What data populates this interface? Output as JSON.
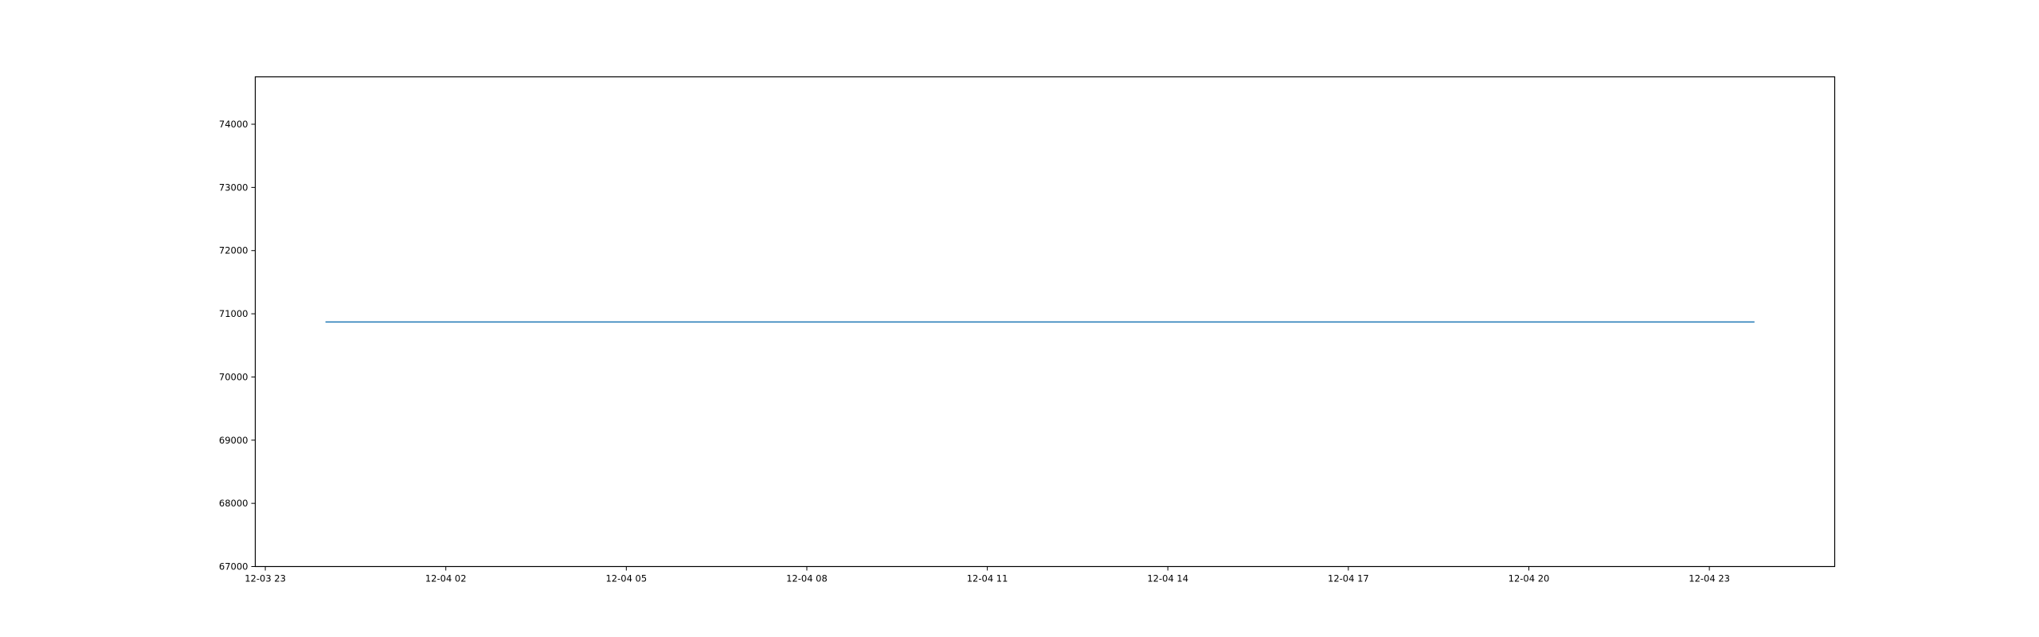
{
  "chart_data": {
    "type": "line",
    "title": "",
    "xlabel": "",
    "ylabel": "",
    "x_ticks": [
      "12-03 23",
      "12-04 02",
      "12-04 05",
      "12-04 08",
      "12-04 11",
      "12-04 14",
      "12-04 17",
      "12-04 20",
      "12-04 23"
    ],
    "y_ticks": [
      "67000",
      "68000",
      "69000",
      "70000",
      "71000",
      "72000",
      "73000",
      "74000"
    ],
    "ylim": [
      67000,
      74750
    ],
    "xlim": [
      "2023-12-03 22:50",
      "2023-12-05 01:05"
    ],
    "grid": false,
    "legend": "none",
    "line_color": "#1f77b4",
    "series": [
      {
        "x": [
          "2023-12-04 00:00",
          "2023-12-04 23:45"
        ],
        "values": [
          70870,
          70870
        ]
      }
    ]
  }
}
